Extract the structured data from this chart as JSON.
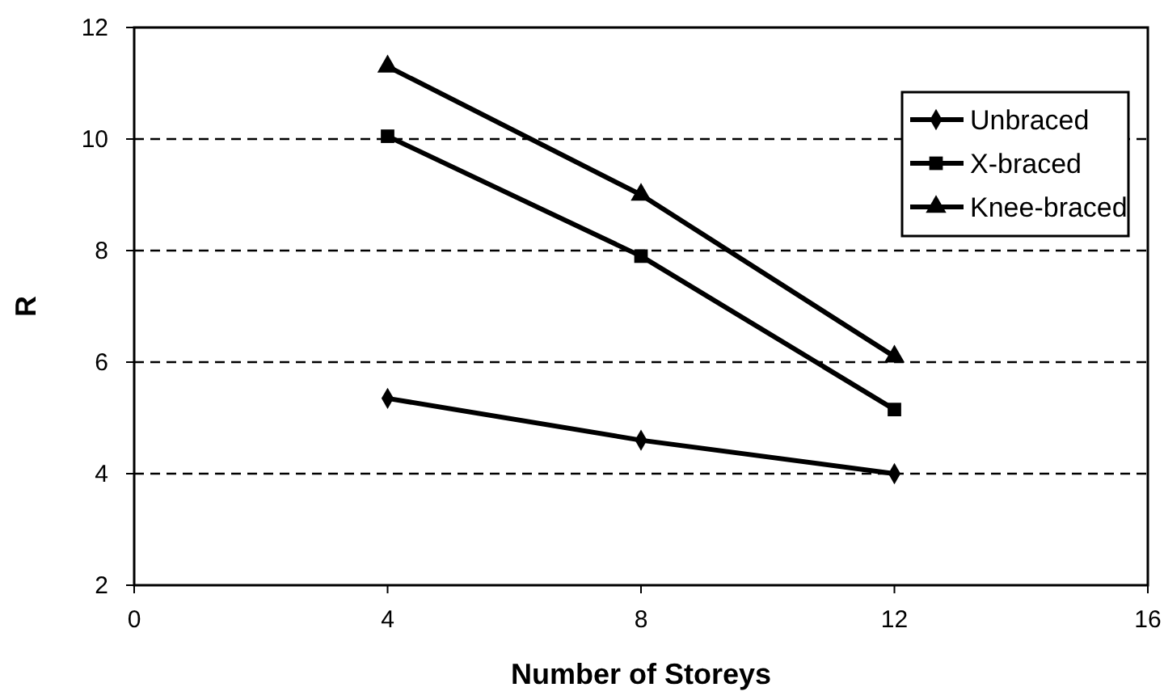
{
  "chart_data": {
    "type": "line",
    "xlabel": "Number of Storeys",
    "ylabel": "R",
    "x": [
      4,
      8,
      12
    ],
    "series": [
      {
        "name": "Unbraced",
        "color": "#000000",
        "marker": "diamond",
        "values": [
          5.35,
          4.6,
          4.0
        ]
      },
      {
        "name": "X-braced",
        "color": "#000000",
        "marker": "square",
        "values": [
          10.05,
          7.9,
          5.15
        ]
      },
      {
        "name": "Knee-braced",
        "color": "#000000",
        "marker": "triangle",
        "values": [
          11.3,
          9.0,
          6.1
        ]
      }
    ],
    "xlim": [
      0,
      16
    ],
    "xticks": [
      0,
      4,
      8,
      12,
      16
    ],
    "ylim": [
      2,
      12
    ],
    "yticks": [
      2,
      4,
      6,
      8,
      10,
      12
    ],
    "grid": "y",
    "legend": "top right",
    "line_style": "solid"
  }
}
